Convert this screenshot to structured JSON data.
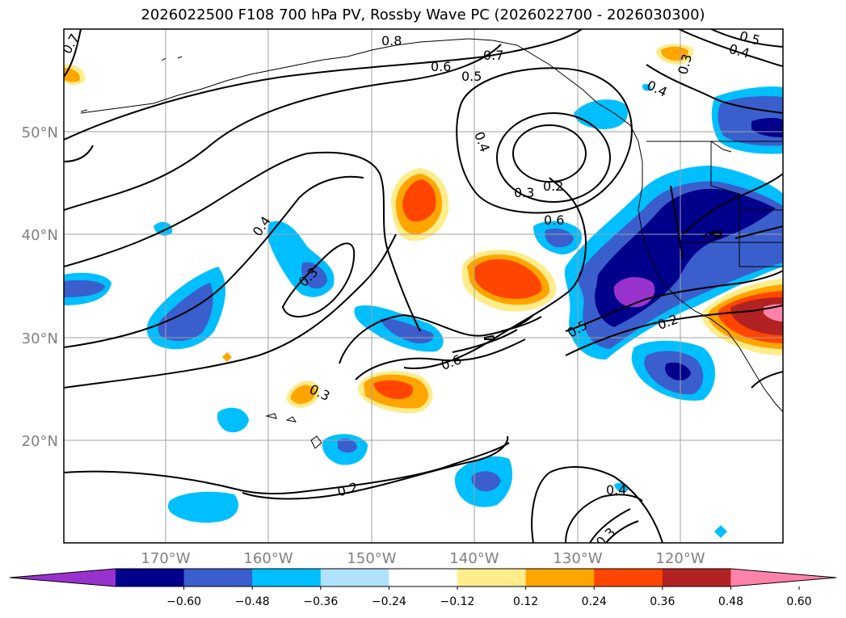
{
  "title": "2026022500 F108 700 hPa PV, Rossby Wave PC (2026022700 - 2026030300)",
  "latitude_labels": [
    "50°N",
    "40°N",
    "30°N",
    "20°N"
  ],
  "longitude_labels": [
    "170°W",
    "160°W",
    "150°W",
    "140°W",
    "130°W",
    "120°W"
  ],
  "contour_labels": [
    "0.8",
    "0.7",
    "0.6",
    "0.5",
    "0.4",
    "0.3",
    "0.2",
    "0.4",
    "0.3",
    "0.6",
    "0.5",
    "0.2",
    "0.6",
    "0.3",
    "0.2",
    "0.4",
    "0.3",
    "0.4",
    "0.5",
    "0.4",
    "0.3",
    "0.7"
  ],
  "colorbar": {
    "ticks": [
      "−0.60",
      "−0.48",
      "−0.36",
      "−0.24",
      "−0.12",
      "0.12",
      "0.24",
      "0.36",
      "0.48",
      "0.60"
    ],
    "colors": [
      "#9932cc",
      "#00008b",
      "#3a5fcd",
      "#00bfff",
      "#b0e2ff",
      "#ffffff",
      "#ffec8b",
      "#ffa500",
      "#ff4500",
      "#b22222",
      "#ff82ab"
    ]
  }
}
